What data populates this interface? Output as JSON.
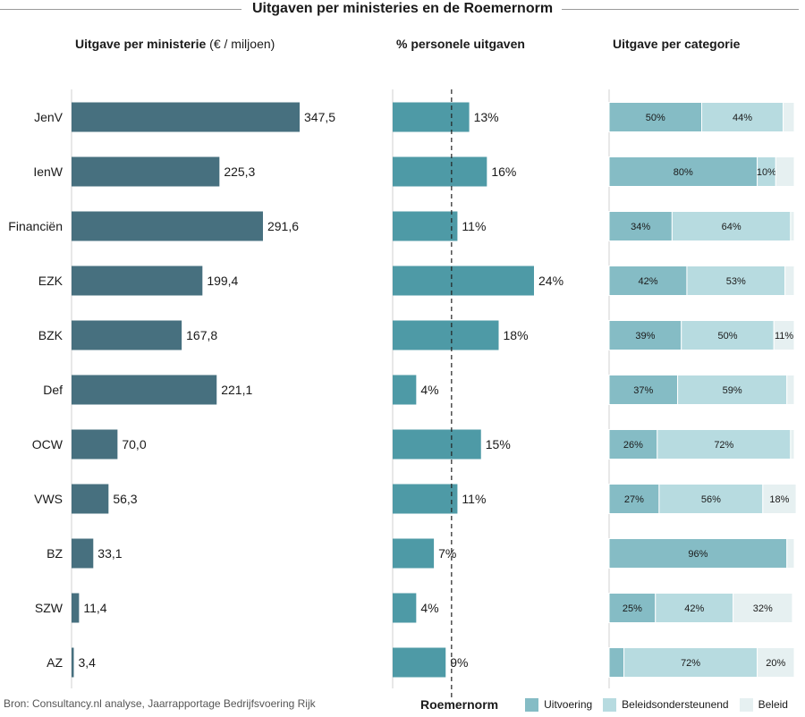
{
  "title": "Uitgaven per ministeries en de Roemernorm",
  "source": "Bron: Consultancy.nl analyse, Jaarrapportage Bedrijfsvoering Rijk",
  "colors": {
    "spend": "#47707f",
    "personnel": "#4e9aa6",
    "uitvoering": "#85bcc5",
    "beleidsondersteunend": "#b7dbe0",
    "beleid": "#e6f0f1"
  },
  "legend": {
    "title": "Roemernorm",
    "items": [
      "Uitvoering",
      "Beleidsondersteunend",
      "Beleid"
    ]
  },
  "chart_data": [
    {
      "type": "bar",
      "orientation": "horizontal",
      "title_bold": "Uitgave per ministerie",
      "title_light": "(€ / miljoen)",
      "categories": [
        "JenV",
        "IenW",
        "Financiën",
        "EZK",
        "BZK",
        "Def",
        "OCW",
        "VWS",
        "BZ",
        "SZW",
        "AZ"
      ],
      "values": [
        347.5,
        225.3,
        291.6,
        199.4,
        167.8,
        221.1,
        70.0,
        56.3,
        33.1,
        11.4,
        3.4
      ],
      "labels": [
        "347,5",
        "225,3",
        "291,6",
        "199,4",
        "167,8",
        "221,1",
        "70,0",
        "56,3",
        "33,1",
        "11,4",
        "3,4"
      ]
    },
    {
      "type": "bar",
      "orientation": "horizontal",
      "title": "% personele uitgaven",
      "categories": [
        "JenV",
        "IenW",
        "Financiën",
        "EZK",
        "BZK",
        "Def",
        "OCW",
        "VWS",
        "BZ",
        "SZW",
        "AZ"
      ],
      "values": [
        13,
        16,
        11,
        24,
        18,
        4,
        15,
        11,
        7,
        4,
        9
      ],
      "labels": [
        "13%",
        "16%",
        "11%",
        "24%",
        "18%",
        "4%",
        "15%",
        "11%",
        "7%",
        "4%",
        "9%"
      ],
      "reference_line": {
        "name": "Roemernorm",
        "value": 10,
        "style": "dashed"
      }
    },
    {
      "type": "bar",
      "orientation": "horizontal",
      "stacked": "100%",
      "title": "Uitgave per categorie",
      "categories": [
        "JenV",
        "IenW",
        "Financiën",
        "EZK",
        "BZK",
        "Def",
        "OCW",
        "VWS",
        "BZ",
        "SZW",
        "AZ"
      ],
      "series": [
        {
          "name": "Uitvoering",
          "values": [
            50,
            80,
            34,
            42,
            39,
            37,
            26,
            27,
            96,
            25,
            8
          ],
          "labels": [
            "50%",
            "80%",
            "34%",
            "42%",
            "39%",
            "37%",
            "26%",
            "27%",
            "96%",
            "25%",
            ""
          ]
        },
        {
          "name": "Beleidsondersteunend",
          "values": [
            44,
            10,
            64,
            53,
            50,
            59,
            72,
            56,
            0,
            42,
            72
          ],
          "labels": [
            "44%",
            "10%",
            "64%",
            "53%",
            "50%",
            "59%",
            "72%",
            "56%",
            "",
            "42%",
            "72%"
          ]
        },
        {
          "name": "Beleid",
          "values": [
            6,
            10,
            2,
            5,
            11,
            4,
            2,
            18,
            4,
            32,
            20
          ],
          "labels": [
            "",
            "",
            "",
            "",
            "11%",
            "",
            "",
            "18%",
            "",
            "32%",
            "20%"
          ]
        }
      ]
    }
  ]
}
